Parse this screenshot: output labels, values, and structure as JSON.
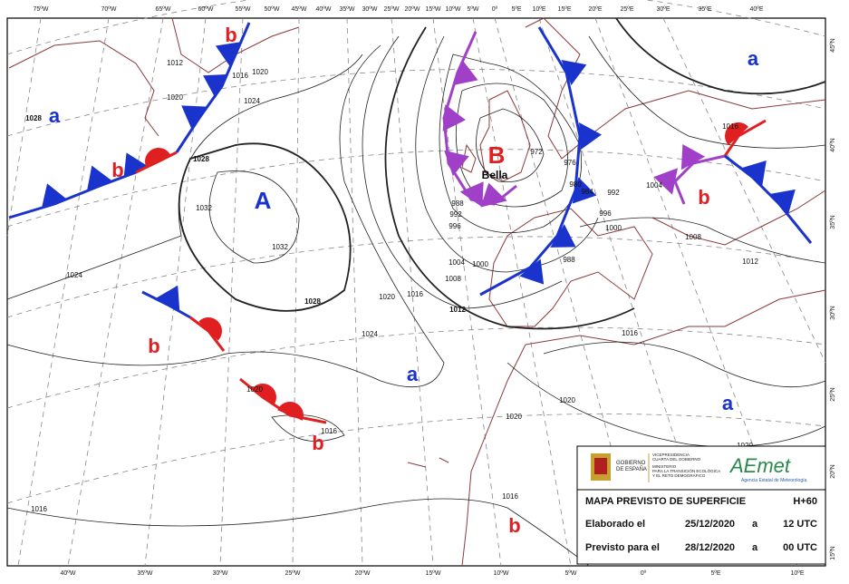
{
  "lon_labels_top": [
    "75ºW",
    "70ºW",
    "65ºW",
    "60ºW",
    "55ºW",
    "50ºW",
    "45ºW",
    "40ºW",
    "35ºW",
    "30ºW",
    "25ºW",
    "20ºW",
    "15ºW",
    "10ºW",
    "5ºW",
    "0º",
    "5ºE",
    "10ºE",
    "15ºE",
    "20ºE",
    "25ºE",
    "30ºE",
    "35ºE",
    "40ºE"
  ],
  "lon_labels_bottom": [
    "40ºW",
    "35ºW",
    "30ºW",
    "25ºW",
    "20ºW",
    "15ºW",
    "10ºW",
    "5ºW",
    "0º",
    "5ºE",
    "10ºE"
  ],
  "lat_labels_right": [
    "45ºN",
    "40ºN",
    "35ºN",
    "30ºN",
    "25ºN",
    "20ºN",
    "15ºN"
  ],
  "pressure_centers": [
    "a",
    "b",
    "b",
    "A",
    "B",
    "b",
    "a",
    "b",
    "a",
    "b",
    "a",
    "b"
  ],
  "storm_name": "Bella",
  "isobar_labels": [
    "1012",
    "1020",
    "1028",
    "1016",
    "1020",
    "1024",
    "1028",
    "1032",
    "1032",
    "1024",
    "1028",
    "1020",
    "1016",
    "1024",
    "1012",
    "1008",
    "1004",
    "1000",
    "996",
    "992",
    "988",
    "988",
    "996",
    "1000",
    "1004",
    "1008",
    "1012",
    "1016",
    "1016",
    "1020",
    "1020",
    "1020",
    "1016",
    "1016",
    "1016",
    "1020",
    "980",
    "976",
    "972",
    "984",
    "992"
  ],
  "legend": {
    "gov_line1": "GOBIERNO",
    "gov_line2": "DE ESPAÑA",
    "ministry_1": "VICEPRESIDENCIA",
    "ministry_2": "CUARTA DEL GOBIERNO",
    "ministry_3": "MINISTERIO",
    "ministry_4": "PARA LA TRANSICIÓN ECOLÓGICA",
    "ministry_5": "Y EL RETO DEMOGRÁFICO",
    "agency_logo": "AEmet",
    "agency_name": "Agencia Estatal de Meteorología",
    "title": "MAPA PREVISTO DE SUPERFICIE",
    "lead": "H+60",
    "made_label": "Elaborado el",
    "made_date": "25/12/2020",
    "made_at": "a",
    "made_time": "12 UTC",
    "valid_label": "Previsto para el",
    "valid_date": "28/12/2020",
    "valid_at": "a",
    "valid_time": "00 UTC"
  }
}
